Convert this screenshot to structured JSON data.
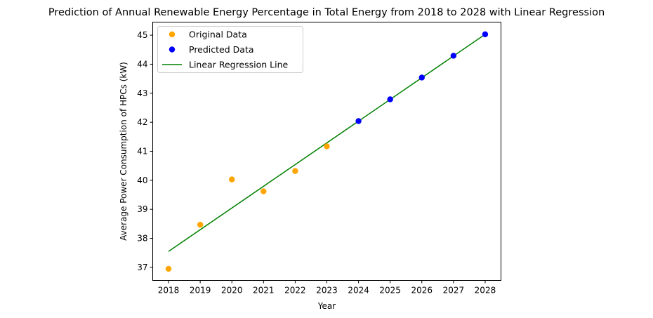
{
  "chart_data": {
    "type": "scatter",
    "title": "Prediction of Annual Renewable Energy Percentage in Total Energy from 2018 to 2028 with Linear Regression",
    "xlabel": "Year",
    "ylabel": "Average Power Consumption of HPCs (kW)",
    "xlim": [
      2017.5,
      2028.5
    ],
    "ylim": [
      36.55,
      45.45
    ],
    "x_ticks": [
      "2018",
      "2019",
      "2020",
      "2021",
      "2022",
      "2023",
      "2024",
      "2025",
      "2026",
      "2027",
      "2028"
    ],
    "y_ticks": [
      "37",
      "38",
      "39",
      "40",
      "41",
      "42",
      "43",
      "44",
      "45"
    ],
    "grid": false,
    "legend_position": "top-left",
    "series": [
      {
        "name": "Original Data",
        "kind": "points",
        "color": "#ffa500",
        "x": [
          2018,
          2019,
          2020,
          2021,
          2022,
          2023
        ],
        "y": [
          36.95,
          38.47,
          40.03,
          39.62,
          40.32,
          41.17
        ]
      },
      {
        "name": "Predicted Data",
        "kind": "points",
        "color": "#0000ff",
        "x": [
          2024,
          2025,
          2026,
          2027,
          2028
        ],
        "y": [
          42.04,
          42.79,
          43.54,
          44.29,
          45.03
        ]
      },
      {
        "name": "Linear Regression Line",
        "kind": "line",
        "color": "#008000",
        "x": [
          2018,
          2028
        ],
        "y": [
          37.55,
          45.03
        ]
      }
    ]
  }
}
